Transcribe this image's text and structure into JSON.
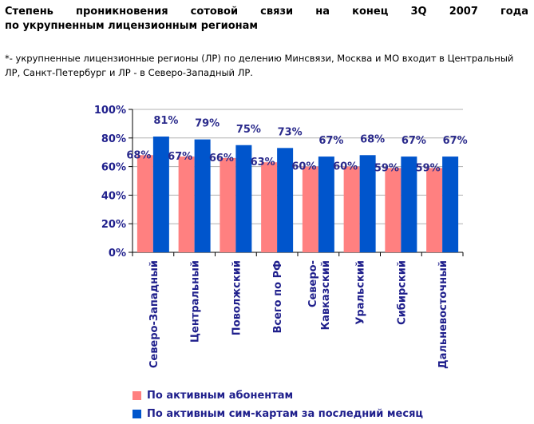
{
  "title": {
    "line1": "Степень проникновения сотовой связи на конец 3Q 2007 года",
    "line2": "по укрупненным лицензионным регионам"
  },
  "footnote": "*- укрупненные лицензионные регионы (ЛР) по делению Минсвязи, Москва и МО входит в Центральный ЛР, Санкт-Петербург и ЛР - в Северо-Западный ЛР.",
  "colors": {
    "series_a": "#ff8080",
    "series_b": "#0055cc",
    "axis_text": "#1f1f8c"
  },
  "chart_data": {
    "type": "bar",
    "categories": [
      "Северо-Западный",
      "Центральный",
      "Поволжский",
      "Всего по РФ",
      "Северо-Кавказский",
      "Уральский",
      "Сибирский",
      "Дальневосточный"
    ],
    "category_lines": [
      [
        "Северо-Западный"
      ],
      [
        "Центральный"
      ],
      [
        "Поволжский"
      ],
      [
        "Всего по РФ"
      ],
      [
        "Северо-",
        "Кавказский"
      ],
      [
        "Уральский"
      ],
      [
        "Сибирский"
      ],
      [
        "Дальневосточный"
      ]
    ],
    "series": [
      {
        "name": "По активным абонентам",
        "values": [
          68,
          67,
          66,
          63,
          60,
          60,
          59,
          59
        ],
        "labels": [
          "68%",
          "67%",
          "66%",
          "63%",
          "60%",
          "60%",
          "59%",
          "59%"
        ]
      },
      {
        "name": "По активным сим-картам за последний месяц",
        "values": [
          81,
          79,
          75,
          73,
          67,
          68,
          67,
          67
        ],
        "labels": [
          "81%",
          "79%",
          "75%",
          "73%",
          "67%",
          "68%",
          "67%",
          "67%"
        ]
      }
    ],
    "ylim": [
      0,
      100
    ],
    "yticks": [
      0,
      20,
      40,
      60,
      80,
      100
    ],
    "ytick_labels": [
      "0%",
      "20%",
      "40%",
      "60%",
      "80%",
      "100%"
    ],
    "grid": true,
    "legend_position": "bottom"
  }
}
